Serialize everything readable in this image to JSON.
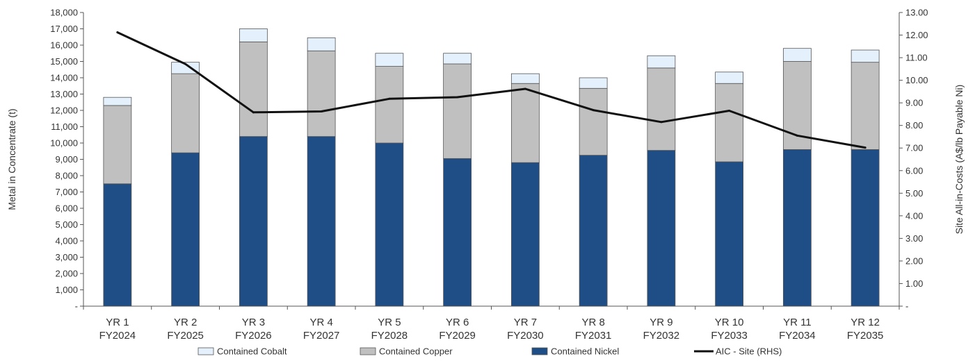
{
  "chart_data": {
    "type": "bar",
    "stacked": true,
    "categories": [
      [
        "YR 1",
        "FY2024"
      ],
      [
        "YR 2",
        "FY2025"
      ],
      [
        "YR 3",
        "FY2026"
      ],
      [
        "YR 4",
        "FY2027"
      ],
      [
        "YR 5",
        "FY2028"
      ],
      [
        "YR 6",
        "FY2029"
      ],
      [
        "YR 7",
        "FY2030"
      ],
      [
        "YR 8",
        "FY2031"
      ],
      [
        "YR 9",
        "FY2032"
      ],
      [
        "YR 10",
        "FY2033"
      ],
      [
        "YR 11",
        "FY2034"
      ],
      [
        "YR 12",
        "FY2035"
      ]
    ],
    "ylabel": "Metal in Concentrate (t)",
    "y2label": "Site All-in-Costs  (A$/lb Payable Ni)",
    "ylim": [
      0,
      18000
    ],
    "y2lim": [
      0,
      13
    ],
    "yticks": [
      "-",
      "1,000",
      "2,000",
      "3,000",
      "4,000",
      "5,000",
      "6,000",
      "7,000",
      "8,000",
      "9,000",
      "10,000",
      "11,000",
      "12,000",
      "13,000",
      "14,000",
      "15,000",
      "16,000",
      "17,000",
      "18,000"
    ],
    "y2ticks": [
      "-",
      "1.00",
      "2.00",
      "3.00",
      "4.00",
      "5.00",
      "6.00",
      "7.00",
      "8.00",
      "9.00",
      "10.00",
      "11.00",
      "12.00",
      "13.00"
    ],
    "grid": false,
    "legend_position": "bottom",
    "series": [
      {
        "name": "Contained Nickel",
        "kind": "bar",
        "color": "#1f4e87",
        "values": [
          7500,
          9400,
          10400,
          10400,
          10000,
          9050,
          8800,
          9250,
          9550,
          8850,
          9600,
          9600
        ]
      },
      {
        "name": "Contained Copper",
        "kind": "bar",
        "color": "#c0c0c0",
        "values": [
          4800,
          4850,
          5800,
          5250,
          4700,
          5800,
          4850,
          4100,
          5050,
          4800,
          5400,
          5350
        ]
      },
      {
        "name": "Contained Cobalt",
        "kind": "bar",
        "color": "#e4f0fb",
        "values": [
          500,
          700,
          800,
          800,
          800,
          650,
          600,
          650,
          750,
          700,
          800,
          750
        ]
      },
      {
        "name": "AIC - Site (RHS)",
        "kind": "line",
        "axis": "right",
        "color": "#111111",
        "values": [
          12.12,
          10.72,
          8.58,
          8.62,
          9.18,
          9.25,
          9.62,
          8.68,
          8.15,
          8.65,
          7.55,
          7.02
        ]
      }
    ],
    "legend_order": [
      "Contained Cobalt",
      "Contained Copper",
      "Contained Nickel",
      "AIC - Site (RHS)"
    ]
  }
}
